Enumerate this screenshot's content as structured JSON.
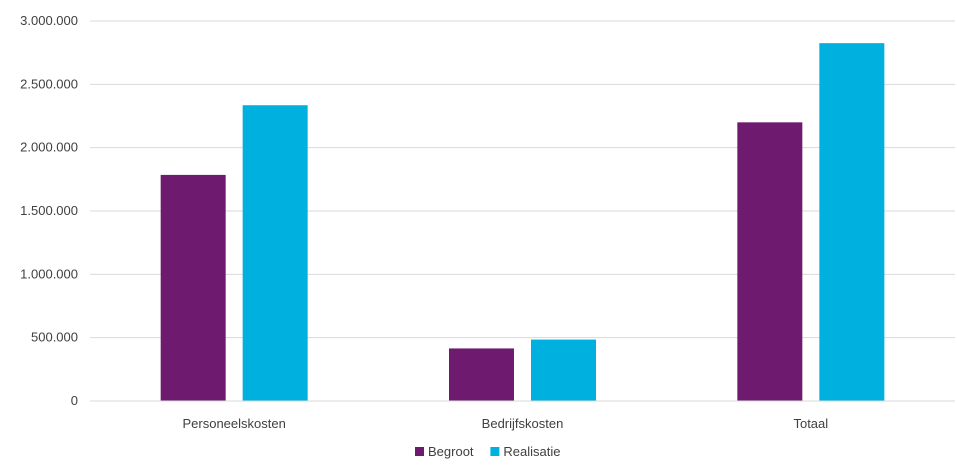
{
  "chart_data": {
    "type": "bar",
    "title": "",
    "xlabel": "",
    "ylabel": "",
    "categories": [
      "Personeelskosten",
      "Bedrijfskosten",
      "Totaal"
    ],
    "series": [
      {
        "name": "Begroot",
        "color": "#6D1A6F",
        "values": [
          1785000,
          415000,
          2200000
        ]
      },
      {
        "name": "Realisatie",
        "color": "#00B0DE",
        "values": [
          2335000,
          485000,
          2825000
        ]
      }
    ],
    "ylim": [
      0,
      3000000
    ],
    "yticks": [
      0,
      500000,
      1000000,
      1500000,
      2000000,
      2500000,
      3000000
    ],
    "ytick_labels": [
      "0",
      "500.000",
      "1.000.000",
      "1.500.000",
      "2.000.000",
      "2.500.000",
      "3.000.000"
    ],
    "grid": true,
    "legend_position": "bottom"
  }
}
